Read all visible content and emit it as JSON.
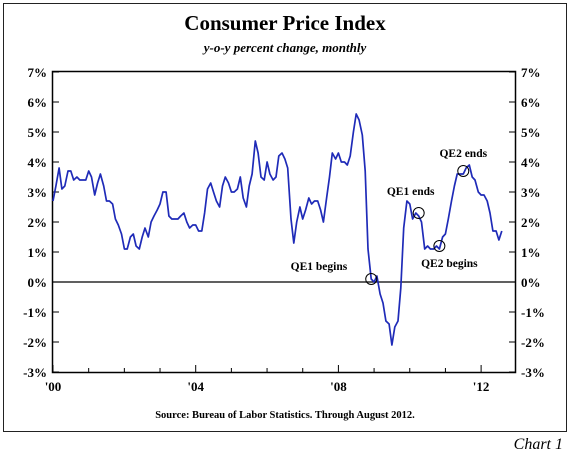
{
  "chart_data": {
    "type": "line",
    "title": "Consumer Price Index",
    "subtitle": "y-o-y percent change, monthly",
    "source": "Source: Bureau of Labor Statistics. Through August 2012.",
    "footer_label": "Chart 1",
    "xlim": [
      2000.0,
      2012.95
    ],
    "ylim": [
      -3,
      7
    ],
    "y_ticks": [
      7,
      6,
      5,
      4,
      3,
      2,
      1,
      0,
      -1,
      -2,
      -3
    ],
    "y_tick_labels": [
      "7%",
      "6%",
      "5%",
      "4%",
      "3%",
      "2%",
      "1%",
      "0%",
      "-1%",
      "-2%",
      "-3%"
    ],
    "x_ticks": [
      2000,
      2004,
      2008,
      2012
    ],
    "x_tick_labels": [
      "'00",
      "'04",
      "'08",
      "'12"
    ],
    "zero_line": true,
    "line_color": "#1f2bb8",
    "series": [
      {
        "x": [
          2000.0,
          2000.08,
          2000.17,
          2000.25,
          2000.33,
          2000.42,
          2000.5,
          2000.58,
          2000.67,
          2000.75,
          2000.83,
          2000.92,
          2001.0,
          2001.08,
          2001.17,
          2001.25,
          2001.33,
          2001.42,
          2001.5,
          2001.58,
          2001.67,
          2001.75,
          2001.83,
          2001.92,
          2002.0,
          2002.08,
          2002.17,
          2002.25,
          2002.33,
          2002.42,
          2002.5,
          2002.58,
          2002.67,
          2002.75,
          2002.83,
          2002.92,
          2003.0,
          2003.08,
          2003.17,
          2003.25,
          2003.33,
          2003.42,
          2003.5,
          2003.58,
          2003.67,
          2003.75,
          2003.83,
          2003.92,
          2004.0,
          2004.08,
          2004.17,
          2004.25,
          2004.33,
          2004.42,
          2004.5,
          2004.58,
          2004.67,
          2004.75,
          2004.83,
          2004.92,
          2005.0,
          2005.08,
          2005.17,
          2005.25,
          2005.33,
          2005.42,
          2005.5,
          2005.58,
          2005.67,
          2005.75,
          2005.83,
          2005.92,
          2006.0,
          2006.08,
          2006.17,
          2006.25,
          2006.33,
          2006.42,
          2006.5,
          2006.58,
          2006.67,
          2006.75,
          2006.83,
          2006.92,
          2007.0,
          2007.08,
          2007.17,
          2007.25,
          2007.33,
          2007.42,
          2007.5,
          2007.58,
          2007.67,
          2007.75,
          2007.83,
          2007.92,
          2008.0,
          2008.08,
          2008.17,
          2008.25,
          2008.33,
          2008.42,
          2008.5,
          2008.58,
          2008.67,
          2008.75,
          2008.83,
          2008.92,
          2009.0,
          2009.08,
          2009.17,
          2009.25,
          2009.33,
          2009.42,
          2009.5,
          2009.58,
          2009.67,
          2009.75,
          2009.83,
          2009.92,
          2010.0,
          2010.08,
          2010.17,
          2010.25,
          2010.33,
          2010.42,
          2010.5,
          2010.58,
          2010.67,
          2010.75,
          2010.83,
          2010.92,
          2011.0,
          2011.08,
          2011.17,
          2011.25,
          2011.33,
          2011.42,
          2011.5,
          2011.58,
          2011.67,
          2011.75,
          2011.83,
          2011.92,
          2012.0,
          2012.08,
          2012.17,
          2012.25,
          2012.33,
          2012.42,
          2012.5,
          2012.58
        ],
        "values": [
          2.7,
          3.2,
          3.8,
          3.1,
          3.2,
          3.7,
          3.7,
          3.4,
          3.5,
          3.4,
          3.4,
          3.4,
          3.7,
          3.5,
          2.9,
          3.3,
          3.6,
          3.2,
          2.7,
          2.7,
          2.6,
          2.1,
          1.9,
          1.6,
          1.1,
          1.1,
          1.5,
          1.6,
          1.2,
          1.1,
          1.5,
          1.8,
          1.5,
          2.0,
          2.2,
          2.4,
          2.6,
          3.0,
          3.0,
          2.2,
          2.1,
          2.1,
          2.1,
          2.2,
          2.3,
          2.0,
          1.8,
          1.9,
          1.9,
          1.7,
          1.7,
          2.3,
          3.1,
          3.3,
          3.0,
          2.7,
          2.5,
          3.2,
          3.5,
          3.3,
          3.0,
          3.0,
          3.1,
          3.5,
          2.8,
          2.5,
          3.2,
          3.6,
          4.7,
          4.3,
          3.5,
          3.4,
          4.0,
          3.6,
          3.4,
          3.5,
          4.2,
          4.3,
          4.1,
          3.8,
          2.1,
          1.3,
          2.0,
          2.5,
          2.1,
          2.4,
          2.8,
          2.6,
          2.7,
          2.7,
          2.4,
          2.0,
          2.8,
          3.5,
          4.3,
          4.1,
          4.3,
          4.0,
          4.0,
          3.9,
          4.2,
          5.0,
          5.6,
          5.4,
          4.9,
          3.7,
          1.1,
          0.1,
          0.0,
          0.2,
          -0.4,
          -0.7,
          -1.3,
          -1.4,
          -2.1,
          -1.5,
          -1.3,
          -0.2,
          1.8,
          2.7,
          2.6,
          2.1,
          2.3,
          2.2,
          2.0,
          1.1,
          1.2,
          1.1,
          1.1,
          1.2,
          1.1,
          1.5,
          1.6,
          2.1,
          2.7,
          3.2,
          3.6,
          3.6,
          3.6,
          3.8,
          3.9,
          3.5,
          3.4,
          3.0,
          2.9,
          2.9,
          2.7,
          2.3,
          1.7,
          1.7,
          1.4,
          1.7
        ]
      }
    ],
    "annotations": [
      {
        "label": "QE1 begins",
        "x": 2008.92,
        "y": 0.1
      },
      {
        "label": "QE1 ends",
        "x": 2010.25,
        "y": 2.3
      },
      {
        "label": "QE2 begins",
        "x": 2010.83,
        "y": 1.2
      },
      {
        "label": "QE2 ends",
        "x": 2011.5,
        "y": 3.7
      }
    ]
  }
}
